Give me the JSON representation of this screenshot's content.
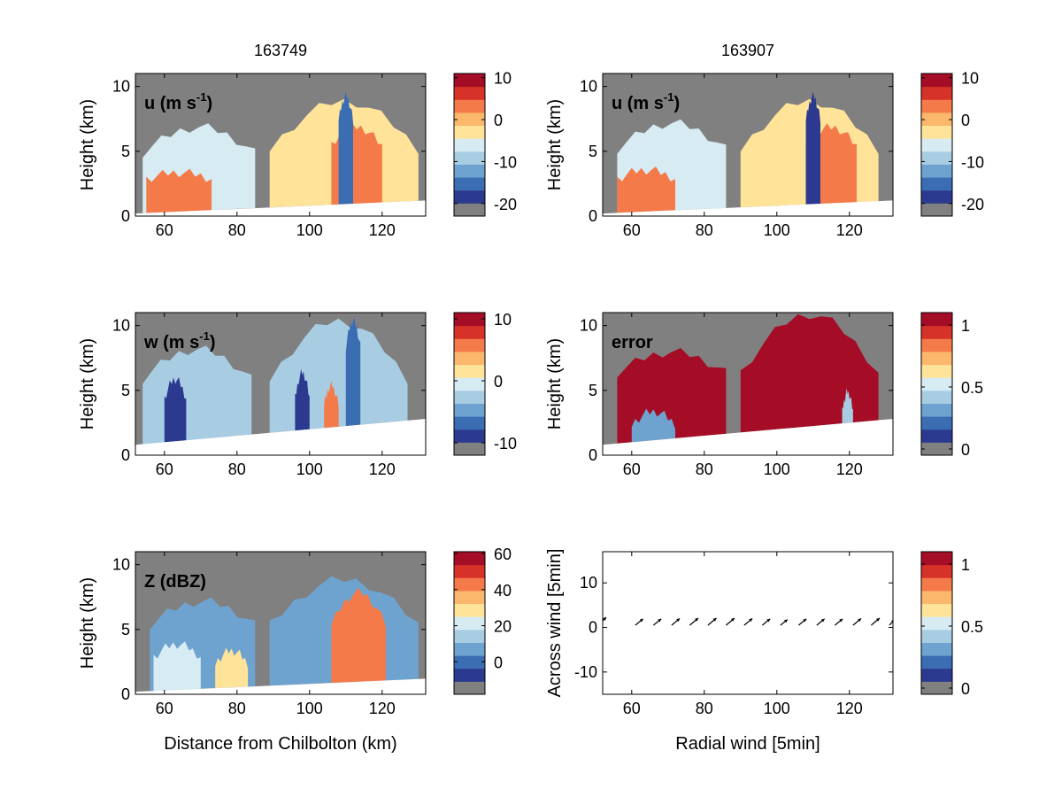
{
  "figure": {
    "column_titles": [
      "163749",
      "163907"
    ]
  },
  "colors": {
    "panel_background": "#808080",
    "colormap": [
      "#808080",
      "#2b3a8f",
      "#3b6db3",
      "#6fa3cf",
      "#a8cde3",
      "#d7ebf3",
      "#ffe399",
      "#fbb76b",
      "#f47a4a",
      "#d73228",
      "#a50d26"
    ]
  },
  "chart_data": [
    {
      "type": "heatmap",
      "panel": "u-163749",
      "label": "u (m s",
      "label_sup": "-1",
      "label_tail": ")",
      "ylabel": "Height (km)",
      "xlabel": "",
      "xlim": [
        52,
        132
      ],
      "ylim": [
        0,
        11
      ],
      "xticks": [
        "60",
        "80",
        "100",
        "120"
      ],
      "yticks": [
        "0",
        "5",
        "10"
      ],
      "colorbar": {
        "range": [
          -23,
          11
        ],
        "ticks": [
          "10",
          "0",
          "-10",
          "-20"
        ],
        "tick_values": [
          10,
          0,
          -10,
          -20
        ]
      },
      "ground_height_km": [
        0.2,
        1.2
      ],
      "echoes": [
        {
          "x": [
            54,
            85
          ],
          "top": [
            4.5,
            6.5
          ],
          "value": -5
        },
        {
          "x": [
            55,
            73
          ],
          "top": [
            2.5,
            3.0
          ],
          "value": 4
        },
        {
          "x": [
            89,
            130
          ],
          "top": [
            4.8,
            8.5
          ],
          "value": -4
        },
        {
          "x": [
            106,
            120
          ],
          "top": [
            5.0,
            6.5
          ],
          "value": 3
        },
        {
          "x": [
            108,
            112
          ],
          "top": [
            7.0,
            8.9
          ],
          "value": -15
        }
      ]
    },
    {
      "type": "heatmap",
      "panel": "u-163907",
      "label": "u (m s",
      "label_sup": "-1",
      "label_tail": ")",
      "ylabel": "Height (km)",
      "xlabel": "",
      "xlim": [
        52,
        132
      ],
      "ylim": [
        0,
        11
      ],
      "xticks": [
        "60",
        "80",
        "100",
        "120"
      ],
      "yticks": [
        "0",
        "5",
        "10"
      ],
      "colorbar": {
        "range": [
          -23,
          11
        ],
        "ticks": [
          "10",
          "0",
          "-10",
          "-20"
        ],
        "tick_values": [
          10,
          0,
          -10,
          -20
        ]
      },
      "ground_height_km": [
        0.2,
        1.2
      ],
      "echoes": [
        {
          "x": [
            56,
            86
          ],
          "top": [
            4.8,
            6.8
          ],
          "value": -5
        },
        {
          "x": [
            56,
            72
          ],
          "top": [
            2.5,
            3.2
          ],
          "value": 4
        },
        {
          "x": [
            90,
            128
          ],
          "top": [
            4.8,
            8.5
          ],
          "value": -4
        },
        {
          "x": [
            108,
            122
          ],
          "top": [
            5.0,
            6.5
          ],
          "value": 3
        },
        {
          "x": [
            108,
            112
          ],
          "top": [
            7.0,
            8.9
          ],
          "value": -17
        }
      ]
    },
    {
      "type": "heatmap",
      "panel": "w-163749",
      "label": "w (m s",
      "label_sup": "-1",
      "label_tail": ")",
      "ylabel": "Height (km)",
      "xlabel": "",
      "xlim": [
        52,
        132
      ],
      "ylim": [
        0,
        11
      ],
      "xticks": [
        "60",
        "80",
        "100",
        "120"
      ],
      "yticks": [
        "0",
        "5",
        "10"
      ],
      "colorbar": {
        "range": [
          -12,
          11
        ],
        "ticks": [
          "10",
          "0",
          "-10"
        ],
        "tick_values": [
          10,
          0,
          -10
        ]
      },
      "ground_height_km": [
        0.8,
        2.8
      ],
      "echoes": [
        {
          "x": [
            54,
            84
          ],
          "top": [
            5.5,
            7.8
          ],
          "value": -3
        },
        {
          "x": [
            60,
            66
          ],
          "top": [
            4.0,
            5.5
          ],
          "value": -9
        },
        {
          "x": [
            89,
            127
          ],
          "top": [
            5.5,
            10.0
          ],
          "value": -2
        },
        {
          "x": [
            96,
            100
          ],
          "top": [
            4.0,
            6.0
          ],
          "value": -9
        },
        {
          "x": [
            104,
            108
          ],
          "top": [
            3.5,
            5.0
          ],
          "value": 6
        },
        {
          "x": [
            110,
            114
          ],
          "top": [
            8.0,
            10.0
          ],
          "value": -7
        }
      ]
    },
    {
      "type": "heatmap",
      "panel": "error-163907",
      "label": "error",
      "label_sup": "",
      "label_tail": "",
      "ylabel": "Height (km)",
      "xlabel": "",
      "xlim": [
        52,
        132
      ],
      "ylim": [
        0,
        11
      ],
      "xticks": [
        "60",
        "80",
        "100",
        "120"
      ],
      "yticks": [
        "0",
        "5",
        "10"
      ],
      "colorbar": {
        "range": [
          -0.05,
          1.1
        ],
        "ticks": [
          "1",
          "0.5",
          "0"
        ],
        "tick_values": [
          1,
          0.5,
          0
        ]
      },
      "ground_height_km": [
        0.8,
        2.8
      ],
      "echoes": [
        {
          "x": [
            56,
            86
          ],
          "top": [
            6.0,
            7.6
          ],
          "value": 1.05
        },
        {
          "x": [
            90,
            128
          ],
          "top": [
            6.0,
            10.5
          ],
          "value": 1.05
        },
        {
          "x": [
            60,
            72
          ],
          "top": [
            2.0,
            3.0
          ],
          "value": 0.3
        },
        {
          "x": [
            118,
            121
          ],
          "top": [
            3.0,
            4.5
          ],
          "value": 0.45
        }
      ]
    },
    {
      "type": "heatmap",
      "panel": "Z-163749",
      "label": "Z (dBZ)",
      "label_sup": "",
      "label_tail": "",
      "ylabel": "Height (km)",
      "xlabel": "Distance from Chilbolton (km)",
      "xlim": [
        52,
        132
      ],
      "ylim": [
        0,
        11
      ],
      "xticks": [
        "60",
        "80",
        "100",
        "120"
      ],
      "yticks": [
        "0",
        "5",
        "10"
      ],
      "colorbar": {
        "range": [
          -18,
          61
        ],
        "ticks": [
          "60",
          "40",
          "20",
          "0"
        ],
        "tick_values": [
          60,
          40,
          20,
          0
        ]
      },
      "ground_height_km": [
        0.2,
        1.2
      ],
      "echoes": [
        {
          "x": [
            56,
            85
          ],
          "top": [
            5.0,
            6.8
          ],
          "value": 8
        },
        {
          "x": [
            57,
            70
          ],
          "top": [
            2.5,
            3.5
          ],
          "value": 22
        },
        {
          "x": [
            74,
            83
          ],
          "top": [
            2.0,
            3.0
          ],
          "value": 32
        },
        {
          "x": [
            89,
            130
          ],
          "top": [
            5.0,
            8.5
          ],
          "value": 10
        },
        {
          "x": [
            106,
            121
          ],
          "top": [
            5.0,
            7.5
          ],
          "value": 45
        }
      ]
    },
    {
      "type": "scatter",
      "panel": "vectors-163907",
      "ylabel": "Across wind [5min]",
      "xlabel": "Radial wind [5min]",
      "xlim": [
        52,
        132
      ],
      "ylim": [
        -15,
        17
      ],
      "xticks": [
        "60",
        "80",
        "100",
        "120"
      ],
      "yticks": [
        "10",
        "0",
        "-10"
      ],
      "colorbar": {
        "range": [
          -0.05,
          1.1
        ],
        "ticks": [
          "1",
          "0.5",
          "0"
        ],
        "tick_values": [
          1,
          0.5,
          0
        ]
      },
      "arrows": [
        {
          "x": 52,
          "y": 1.5,
          "u": 1.0,
          "v": 1.0
        },
        {
          "x": 61,
          "y": 0.5,
          "u": 2.2,
          "v": 1.8
        },
        {
          "x": 66,
          "y": 0.5,
          "u": 2.2,
          "v": 1.8
        },
        {
          "x": 71,
          "y": 0.5,
          "u": 2.3,
          "v": 1.9
        },
        {
          "x": 76,
          "y": 0.5,
          "u": 2.4,
          "v": 2.0
        },
        {
          "x": 81,
          "y": 0.5,
          "u": 2.4,
          "v": 2.0
        },
        {
          "x": 86,
          "y": 0.5,
          "u": 2.4,
          "v": 2.0
        },
        {
          "x": 91,
          "y": 0.5,
          "u": 2.3,
          "v": 1.9
        },
        {
          "x": 96,
          "y": 0.5,
          "u": 2.2,
          "v": 1.8
        },
        {
          "x": 101,
          "y": 0.5,
          "u": 2.0,
          "v": 1.6
        },
        {
          "x": 106,
          "y": 0.5,
          "u": 2.2,
          "v": 1.8
        },
        {
          "x": 111,
          "y": 0.5,
          "u": 2.2,
          "v": 1.8
        },
        {
          "x": 116,
          "y": 0.5,
          "u": 2.2,
          "v": 1.8
        },
        {
          "x": 121,
          "y": 0.5,
          "u": 2.3,
          "v": 1.9
        },
        {
          "x": 126,
          "y": 0.5,
          "u": 2.4,
          "v": 2.0
        },
        {
          "x": 131,
          "y": 0.5,
          "u": 1.5,
          "v": 1.6
        }
      ]
    }
  ]
}
